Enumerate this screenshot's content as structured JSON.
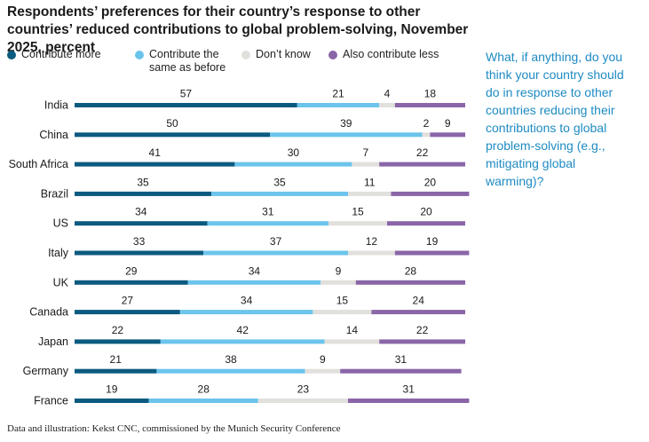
{
  "chart_data": {
    "type": "bar",
    "orientation": "horizontal",
    "stacked": true,
    "title": "Respondents’ preferences for their country’s response to other countries’ reduced contributions to global problem-solving, November 2025, percent",
    "question": "What, if anything, do you think your country should do in response to other countries reducing their contributions to global problem-solving (e.g., mitigating global warming)?",
    "source": "Data and illustration: Kekst CNC, commissioned by the Munich Security Conference",
    "categories": [
      "India",
      "China",
      "South Africa",
      "Brazil",
      "US",
      "Italy",
      "UK",
      "Canada",
      "Japan",
      "Germany",
      "France"
    ],
    "series": [
      {
        "name": "Contribute more",
        "color": "#0b5a80",
        "values": [
          57,
          50,
          41,
          35,
          34,
          33,
          29,
          27,
          22,
          21,
          19
        ]
      },
      {
        "name": "Contribute the same as before",
        "color": "#6cc4ec",
        "values": [
          21,
          39,
          30,
          35,
          31,
          37,
          34,
          34,
          42,
          38,
          28
        ]
      },
      {
        "name": "Don’t know",
        "color": "#e2e0dc",
        "values": [
          4,
          2,
          7,
          11,
          15,
          12,
          9,
          15,
          14,
          9,
          23
        ]
      },
      {
        "name": "Also contribute less",
        "color": "#8a66a8",
        "values": [
          18,
          9,
          22,
          20,
          20,
          19,
          28,
          24,
          22,
          31,
          31
        ]
      }
    ],
    "legend_labels": [
      {
        "line1": "Contribute more",
        "line2": ""
      },
      {
        "line1": "Contribute the",
        "line2": "same as before"
      },
      {
        "line1": "Don’t know",
        "line2": ""
      },
      {
        "line1": "Also contribute less",
        "line2": ""
      }
    ],
    "xlim": [
      0,
      100
    ],
    "grid": false
  }
}
